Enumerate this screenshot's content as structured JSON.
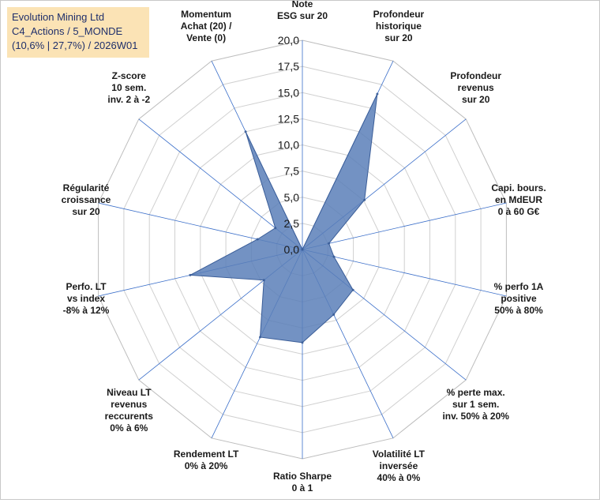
{
  "header": {
    "line1": "Evolution Mining Ltd",
    "line2": "C4_Actions / 5_MONDE",
    "line3": "(10,6% | 27,7%) / 2026W01"
  },
  "chart_data": {
    "type": "radar",
    "r_range": [
      0,
      20
    ],
    "r_ticks": [
      "0,0",
      "2,5",
      "5,0",
      "7,5",
      "10,0",
      "12,5",
      "15,0",
      "17,5",
      "20,0"
    ],
    "axes": [
      [
        "Note",
        "ESG sur 20"
      ],
      [
        "Profondeur",
        "historique",
        "sur 20"
      ],
      [
        "Profondeur",
        "revenus",
        "sur 20"
      ],
      [
        "Capi. bours.",
        "en MdEUR",
        "0 à 60 G€"
      ],
      [
        "% perfo 1A",
        "positive",
        "50% à 80%"
      ],
      [
        "% perte max.",
        "sur 1 sem.",
        "inv. 50% à 20%"
      ],
      [
        "Volatilité LT",
        "inversée",
        "40% à 0%"
      ],
      [
        "Ratio Sharpe",
        "0 à 1"
      ],
      [
        "Rendement LT",
        "0% à 20%"
      ],
      [
        "Niveau LT",
        "revenus",
        "reccurents",
        "0% à 6%"
      ],
      [
        "Perfo. LT",
        "vs index",
        "-8% à 12%"
      ],
      [
        "Régularité",
        "croissance",
        "sur 20"
      ],
      [
        "Z-score",
        "10 sem.",
        "inv. 2 à -2"
      ],
      [
        "Momentum",
        "Achat (20) /",
        "Vente (0)"
      ]
    ],
    "values": [
      0,
      16.5,
      7.6,
      2.6,
      3.1,
      6.2,
      6.9,
      8.9,
      9.3,
      4.7,
      11.0,
      4.4,
      3.3,
      12.5
    ],
    "grid": true,
    "colors": {
      "fill": "#5b7fb8",
      "stroke": "#3a5d98",
      "grid": "#d0d0d0",
      "spoke": "#3a6ec9",
      "info_bg": "#fbe3b5",
      "info_text": "#1f2f6b"
    }
  }
}
